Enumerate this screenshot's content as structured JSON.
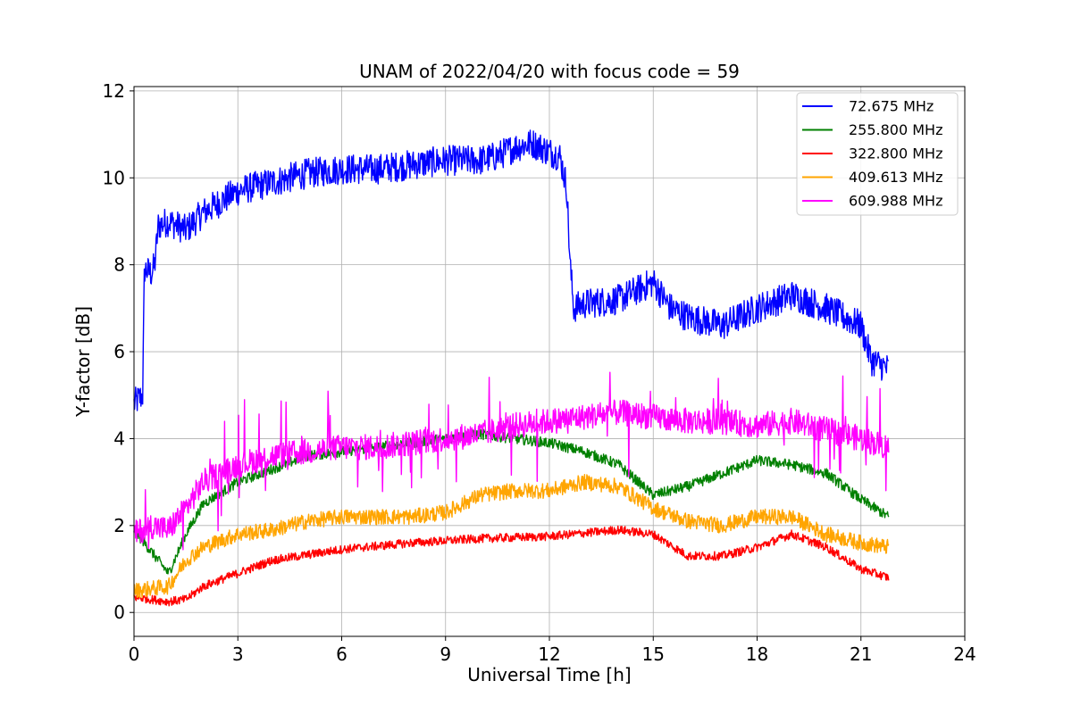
{
  "chart_data": {
    "type": "line",
    "title": "UNAM of 2022/04/20 with focus code = 59",
    "xlabel": "Universal Time [h]",
    "ylabel": "Y-factor [dB]",
    "xlim": [
      0,
      24
    ],
    "ylim": [
      -0.55,
      12.1
    ],
    "xticks": [
      0,
      3,
      6,
      9,
      12,
      15,
      18,
      21,
      24
    ],
    "yticks": [
      0,
      2,
      4,
      6,
      8,
      10,
      12
    ],
    "grid": true,
    "legend_position": "top-right",
    "series": [
      {
        "name": " 72.675 MHz",
        "color": "#0000ff",
        "noise": 0.35,
        "points": [
          [
            0,
            4.8
          ],
          [
            0.25,
            5.0
          ],
          [
            0.3,
            7.9
          ],
          [
            0.5,
            7.8
          ],
          [
            0.6,
            8.0
          ],
          [
            0.7,
            8.9
          ],
          [
            1.0,
            9.0
          ],
          [
            1.5,
            8.8
          ],
          [
            2,
            9.2
          ],
          [
            3,
            9.7
          ],
          [
            4,
            9.9
          ],
          [
            5,
            10.1
          ],
          [
            6,
            10.2
          ],
          [
            7,
            10.2
          ],
          [
            8,
            10.3
          ],
          [
            9,
            10.4
          ],
          [
            10,
            10.4
          ],
          [
            10.5,
            10.5
          ],
          [
            11,
            10.7
          ],
          [
            11.5,
            10.8
          ],
          [
            12,
            10.6
          ],
          [
            12.3,
            10.5
          ],
          [
            12.5,
            9.8
          ],
          [
            12.6,
            8.0
          ],
          [
            12.7,
            7.0
          ],
          [
            13,
            7.1
          ],
          [
            14,
            7.2
          ],
          [
            15,
            7.6
          ],
          [
            15.5,
            7.0
          ],
          [
            16,
            6.8
          ],
          [
            17,
            6.6
          ],
          [
            18,
            7.0
          ],
          [
            19,
            7.3
          ],
          [
            20,
            7.0
          ],
          [
            21,
            6.6
          ],
          [
            21.3,
            5.8
          ],
          [
            21.8,
            5.6
          ]
        ]
      },
      {
        "name": "255.800 MHz",
        "color": "#008000",
        "noise": 0.12,
        "points": [
          [
            0,
            1.9
          ],
          [
            0.5,
            1.4
          ],
          [
            1,
            0.9
          ],
          [
            1.5,
            1.8
          ],
          [
            2,
            2.5
          ],
          [
            3,
            3.0
          ],
          [
            4,
            3.3
          ],
          [
            5,
            3.6
          ],
          [
            6,
            3.7
          ],
          [
            7,
            3.8
          ],
          [
            8,
            3.9
          ],
          [
            9,
            4.0
          ],
          [
            10,
            4.1
          ],
          [
            12,
            3.9
          ],
          [
            13,
            3.7
          ],
          [
            14,
            3.4
          ],
          [
            15,
            2.7
          ],
          [
            16,
            2.9
          ],
          [
            17,
            3.2
          ],
          [
            18,
            3.5
          ],
          [
            19,
            3.4
          ],
          [
            20,
            3.2
          ],
          [
            21,
            2.6
          ],
          [
            21.8,
            2.2
          ]
        ]
      },
      {
        "name": "322.800 MHz",
        "color": "#ff0000",
        "noise": 0.1,
        "points": [
          [
            0,
            0.35
          ],
          [
            1,
            0.25
          ],
          [
            1.5,
            0.3
          ],
          [
            2,
            0.6
          ],
          [
            3,
            0.9
          ],
          [
            4,
            1.2
          ],
          [
            6,
            1.45
          ],
          [
            8,
            1.6
          ],
          [
            10,
            1.7
          ],
          [
            12,
            1.75
          ],
          [
            14,
            1.9
          ],
          [
            15,
            1.8
          ],
          [
            16,
            1.3
          ],
          [
            17,
            1.3
          ],
          [
            18,
            1.5
          ],
          [
            19,
            1.8
          ],
          [
            20,
            1.5
          ],
          [
            21,
            1.0
          ],
          [
            21.8,
            0.8
          ]
        ]
      },
      {
        "name": "409.613 MHz",
        "color": "#ffa500",
        "noise": 0.18,
        "points": [
          [
            0,
            0.5
          ],
          [
            1,
            0.6
          ],
          [
            1.5,
            1.2
          ],
          [
            2,
            1.5
          ],
          [
            3,
            1.8
          ],
          [
            4,
            1.9
          ],
          [
            5,
            2.1
          ],
          [
            6,
            2.2
          ],
          [
            8,
            2.2
          ],
          [
            9,
            2.3
          ],
          [
            10,
            2.7
          ],
          [
            11,
            2.8
          ],
          [
            12,
            2.8
          ],
          [
            13,
            3.0
          ],
          [
            14,
            2.9
          ],
          [
            15,
            2.4
          ],
          [
            16,
            2.1
          ],
          [
            17,
            2.0
          ],
          [
            18,
            2.2
          ],
          [
            19,
            2.2
          ],
          [
            20,
            1.8
          ],
          [
            21,
            1.6
          ],
          [
            21.8,
            1.5
          ]
        ]
      },
      {
        "name": "609.988 MHz",
        "color": "#ff00ff",
        "noise": 0.3,
        "spike": 1.3,
        "points": [
          [
            0,
            1.8
          ],
          [
            0.5,
            2.0
          ],
          [
            1,
            1.9
          ],
          [
            1.5,
            2.4
          ],
          [
            2,
            3.0
          ],
          [
            3,
            3.4
          ],
          [
            4,
            3.6
          ],
          [
            5,
            3.7
          ],
          [
            6,
            3.8
          ],
          [
            7,
            3.8
          ],
          [
            8,
            3.9
          ],
          [
            9,
            4.0
          ],
          [
            10,
            4.1
          ],
          [
            11,
            4.3
          ],
          [
            12,
            4.4
          ],
          [
            13,
            4.5
          ],
          [
            14,
            4.6
          ],
          [
            15,
            4.5
          ],
          [
            16,
            4.4
          ],
          [
            17,
            4.4
          ],
          [
            18,
            4.3
          ],
          [
            19,
            4.4
          ],
          [
            20,
            4.2
          ],
          [
            21,
            4.0
          ],
          [
            21.8,
            3.8
          ]
        ]
      }
    ]
  }
}
